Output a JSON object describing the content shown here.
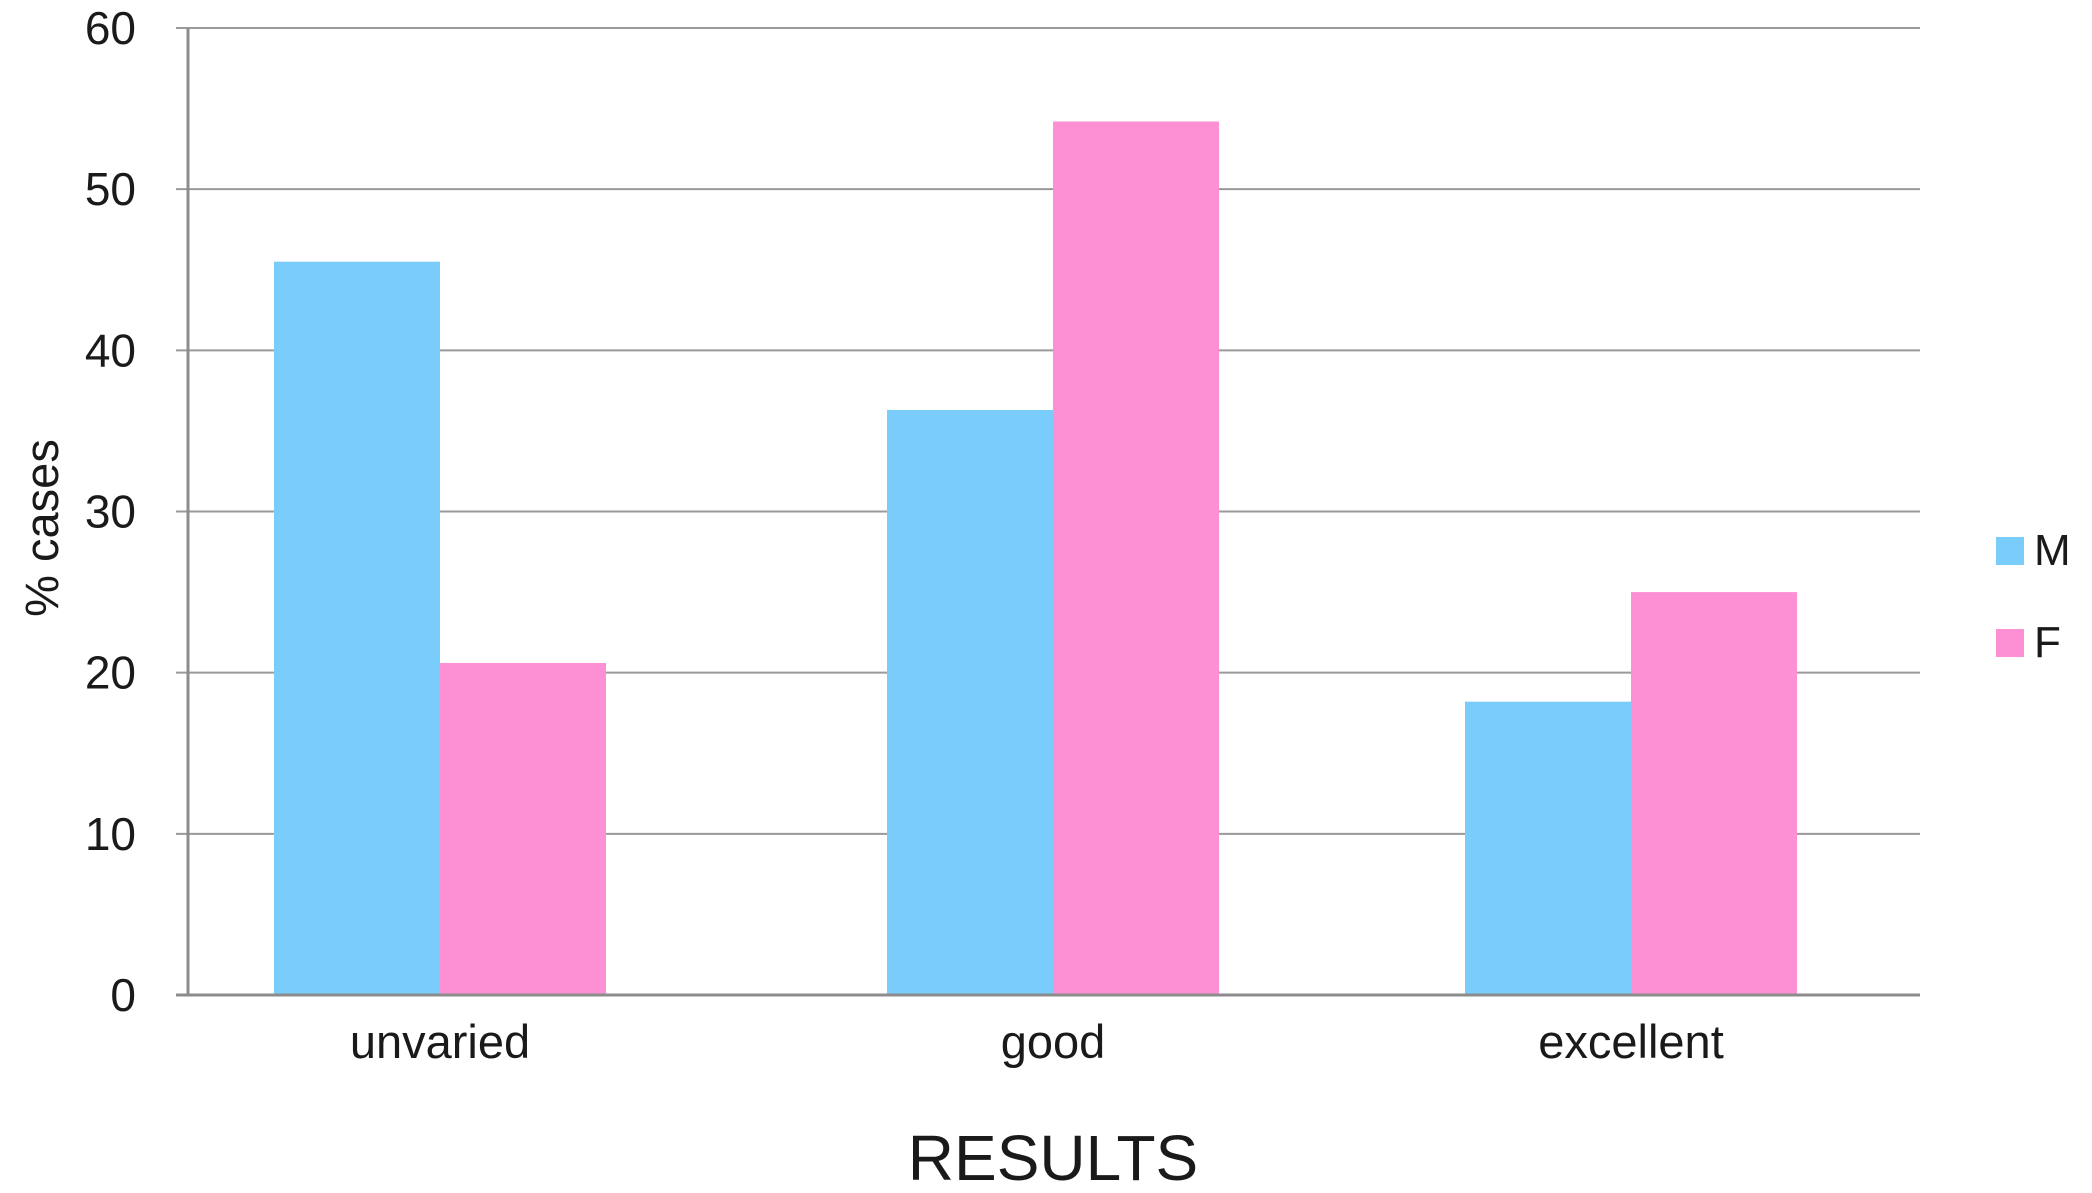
{
  "chart_data": {
    "type": "bar",
    "categories": [
      "unvaried",
      "good",
      "excellent"
    ],
    "series": [
      {
        "name": "M",
        "values": [
          45.5,
          36.3,
          18.2
        ],
        "color": "#7accfa"
      },
      {
        "name": "F",
        "values": [
          20.6,
          54.2,
          25.0
        ],
        "color": "#fd90d4"
      }
    ],
    "xlabel": "RESULTS",
    "ylabel": "% cases",
    "ylim": [
      0,
      60
    ],
    "yticks": [
      "0",
      "10",
      "20",
      "30",
      "40",
      "50",
      "60"
    ],
    "grid": true,
    "legend_position": "right"
  }
}
